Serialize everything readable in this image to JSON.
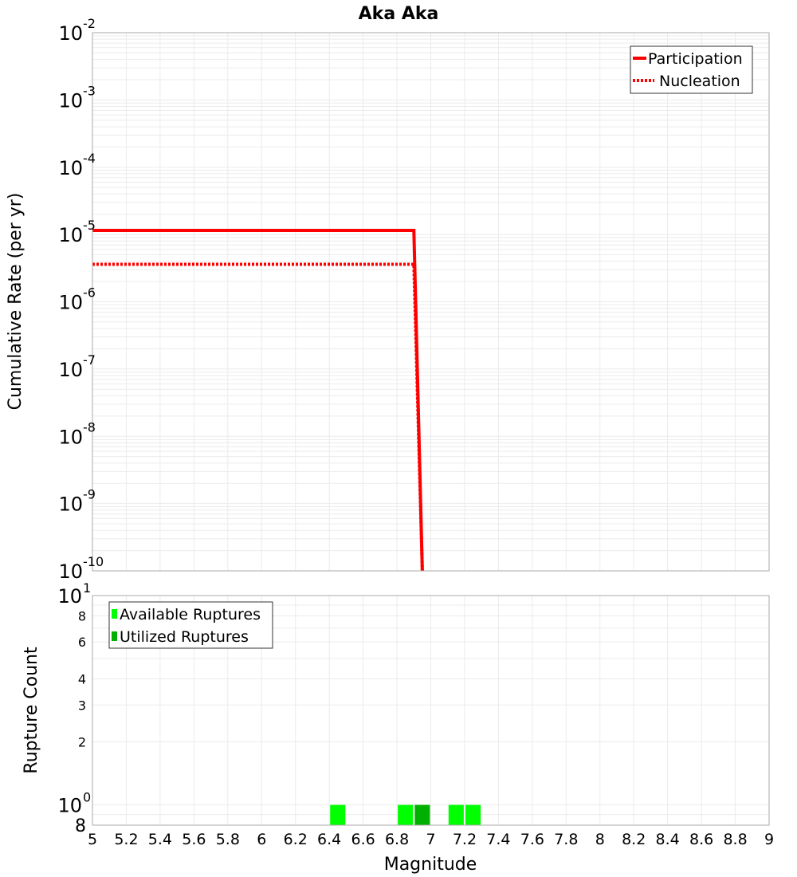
{
  "chart_data": [
    {
      "type": "line",
      "title": "Aka Aka",
      "xlabel": "Magnitude",
      "ylabel": "Cumulative Rate (per yr)",
      "yscale": "log",
      "xlim": [
        5,
        9
      ],
      "ylim": [
        1e-10,
        0.01
      ],
      "grid": true,
      "legend_position": "upper right",
      "y_tick_exponents": [
        -2,
        -3,
        -4,
        -5,
        -6,
        -7,
        -8,
        -9,
        -10
      ],
      "series": [
        {
          "name": "Participation",
          "style": "solid",
          "color": "#ff0000",
          "x": [
            5.0,
            6.9,
            6.95
          ],
          "y": [
            1.15e-05,
            1.15e-05,
            1e-10
          ]
        },
        {
          "name": "Nucleation",
          "style": "dotted",
          "color": "#ff0000",
          "x": [
            5.0,
            6.9,
            6.95
          ],
          "y": [
            3.6e-06,
            3.6e-06,
            1e-10
          ]
        }
      ]
    },
    {
      "type": "bar",
      "xlabel": "Magnitude",
      "ylabel": "Rupture Count",
      "yscale": "log",
      "xlim": [
        5,
        9
      ],
      "ylim": [
        0.8,
        10
      ],
      "grid": true,
      "legend_position": "upper left",
      "x_ticks": [
        "5",
        "5.2",
        "5.4",
        "5.6",
        "5.8",
        "6",
        "6.2",
        "6.4",
        "6.6",
        "6.8",
        "7",
        "7.2",
        "7.4",
        "7.6",
        "7.8",
        "8",
        "8.2",
        "8.4",
        "8.6",
        "8.8",
        "9"
      ],
      "y_tick_labels": [
        {
          "value": 10,
          "label": "10",
          "exp": "1",
          "major": true
        },
        {
          "value": 8,
          "label": "8",
          "major": false
        },
        {
          "value": 6,
          "label": "6",
          "major": false
        },
        {
          "value": 4,
          "label": "4",
          "major": false
        },
        {
          "value": 3,
          "label": "3",
          "major": false
        },
        {
          "value": 2,
          "label": "2",
          "major": false
        },
        {
          "value": 1,
          "label": "10",
          "exp": "0",
          "major": true
        },
        {
          "value": 0.8,
          "label": "8",
          "major": true
        }
      ],
      "bar_width": 0.09,
      "series": [
        {
          "name": "Available Ruptures",
          "color": "#00ff00",
          "x": [
            6.45,
            6.85,
            7.15,
            7.25
          ],
          "values": [
            1,
            1,
            1,
            1
          ]
        },
        {
          "name": "Utilized Ruptures",
          "color": "#00b000",
          "x": [
            6.95
          ],
          "values": [
            1
          ]
        }
      ]
    }
  ]
}
